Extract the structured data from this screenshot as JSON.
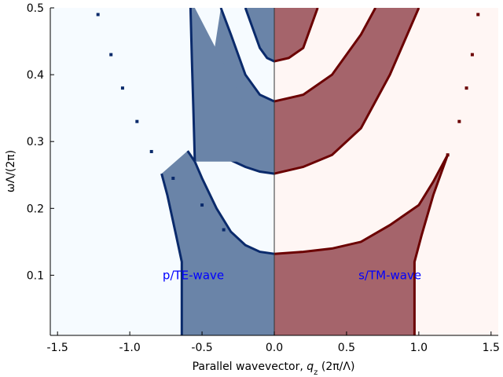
{
  "chart_data": {
    "type": "area",
    "title": "",
    "xlabel_prefix": "Parallel wavevector, ",
    "xlabel_var": "q",
    "xlabel_sub": "z",
    "xlabel_suffix": " (2π/Λ)",
    "ylabel": "ωΛ/(2π)",
    "xlim": [
      -1.55,
      1.55
    ],
    "ylim": [
      0.01,
      0.5
    ],
    "grid": false,
    "xticks": [
      -1.5,
      -1.0,
      -0.5,
      0.0,
      0.5,
      1.0,
      1.5
    ],
    "xtick_labels": [
      "-1.5",
      "-1.0",
      "-0.5",
      "0.0",
      "0.5",
      "1.0",
      "1.5"
    ],
    "yticks": [
      0.1,
      0.2,
      0.3,
      0.4,
      0.5
    ],
    "ytick_labels": [
      "0.1",
      "0.2",
      "0.3",
      "0.4",
      "0.5"
    ],
    "annotations": [
      {
        "text": "p/TE-wave",
        "x": -0.56,
        "y": 0.1,
        "color": "#0000ff"
      },
      {
        "text": "s/TM-wave",
        "x": 0.8,
        "y": 0.1,
        "color": "#0000ff"
      }
    ],
    "series": [
      {
        "side": "left",
        "background": "#f6fbff",
        "fill": "#6a84a8",
        "edge": "#0a2a6b",
        "bands": [
          {
            "lower": [
              [
                -0.64,
                0.01
              ],
              [
                -0.64,
                0.12
              ],
              [
                -0.68,
                0.16
              ],
              [
                -0.74,
                0.22
              ],
              [
                -0.78,
                0.252
              ]
            ],
            "upper": [
              [
                0.0,
                0.132
              ],
              [
                -0.1,
                0.135
              ],
              [
                -0.2,
                0.145
              ],
              [
                -0.3,
                0.165
              ],
              [
                -0.4,
                0.2
              ],
              [
                -0.5,
                0.245
              ],
              [
                -0.55,
                0.27
              ],
              [
                -0.6,
                0.286
              ]
            ]
          },
          {
            "lower": [
              [
                0.0,
                0.252
              ],
              [
                -0.1,
                0.255
              ],
              [
                -0.2,
                0.262
              ],
              [
                -0.3,
                0.272
              ],
              [
                -0.4,
                0.282
              ],
              [
                -0.52,
                0.29
              ]
            ],
            "upper": [
              [
                0.0,
                0.36
              ],
              [
                -0.1,
                0.37
              ],
              [
                -0.2,
                0.4
              ],
              [
                -0.3,
                0.46
              ],
              [
                -0.37,
                0.5
              ]
            ]
          },
          {
            "lower": [
              [
                0.0,
                0.42
              ],
              [
                -0.05,
                0.425
              ],
              [
                -0.1,
                0.44
              ],
              [
                -0.2,
                0.5
              ]
            ],
            "upper": []
          },
          {
            "lower": [
              [
                -0.55,
                0.27
              ],
              [
                -0.56,
                0.35
              ],
              [
                -0.57,
                0.42
              ],
              [
                -0.58,
                0.5
              ]
            ],
            "upper": [
              [
                -0.55,
                0.5
              ]
            ]
          }
        ],
        "dotted_curve": [
          [
            -0.35,
            0.168
          ],
          [
            -0.5,
            0.205
          ],
          [
            -0.7,
            0.245
          ],
          [
            -0.85,
            0.285
          ],
          [
            -0.95,
            0.33
          ],
          [
            -1.05,
            0.38
          ],
          [
            -1.13,
            0.43
          ],
          [
            -1.22,
            0.49
          ]
        ]
      },
      {
        "side": "right",
        "background": "#fff6f4",
        "fill": "#a5646b",
        "edge": "#6b0000",
        "bands": [
          {
            "lower": [
              [
                0.97,
                0.01
              ],
              [
                0.97,
                0.12
              ],
              [
                1.02,
                0.16
              ],
              [
                1.1,
                0.22
              ],
              [
                1.2,
                0.28
              ]
            ],
            "upper": [
              [
                0.0,
                0.132
              ],
              [
                0.2,
                0.135
              ],
              [
                0.4,
                0.14
              ],
              [
                0.6,
                0.15
              ],
              [
                0.8,
                0.175
              ],
              [
                1.0,
                0.205
              ],
              [
                1.1,
                0.24
              ],
              [
                1.2,
                0.28
              ]
            ]
          },
          {
            "lower": [
              [
                0.0,
                0.252
              ],
              [
                0.2,
                0.262
              ],
              [
                0.4,
                0.28
              ],
              [
                0.6,
                0.32
              ],
              [
                0.8,
                0.4
              ],
              [
                1.0,
                0.5
              ]
            ],
            "upper": [
              [
                0.0,
                0.36
              ],
              [
                0.2,
                0.37
              ],
              [
                0.4,
                0.4
              ],
              [
                0.6,
                0.46
              ],
              [
                0.7,
                0.5
              ]
            ]
          },
          {
            "lower": [
              [
                0.0,
                0.42
              ],
              [
                0.1,
                0.425
              ],
              [
                0.2,
                0.44
              ],
              [
                0.3,
                0.5
              ]
            ],
            "upper": []
          }
        ],
        "dotted_curve": [
          [
            1.2,
            0.28
          ],
          [
            1.28,
            0.33
          ],
          [
            1.33,
            0.38
          ],
          [
            1.37,
            0.43
          ],
          [
            1.41,
            0.49
          ]
        ]
      }
    ]
  }
}
